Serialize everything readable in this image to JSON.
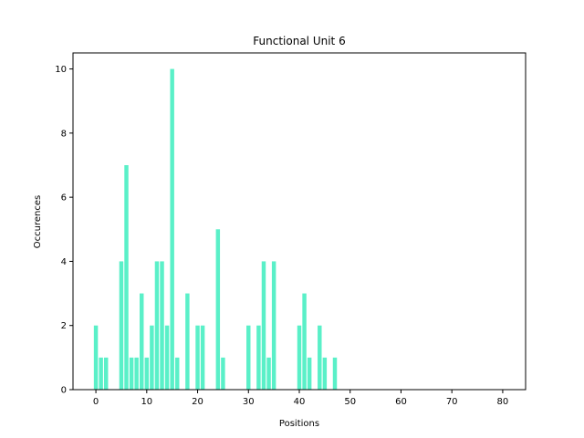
{
  "chart_data": {
    "type": "bar",
    "title": "Functional Unit 6",
    "xlabel": "Positions",
    "ylabel": "Occurences",
    "xlim": [
      -4.5,
      84.5
    ],
    "ylim": [
      0,
      10.5
    ],
    "xticks": [
      0,
      10,
      20,
      30,
      40,
      50,
      60,
      70,
      80
    ],
    "yticks": [
      0,
      2,
      4,
      6,
      8,
      10
    ],
    "grid": false,
    "bar_color": "#5af0c8",
    "x": [
      0,
      1,
      2,
      3,
      4,
      5,
      6,
      7,
      8,
      9,
      10,
      11,
      12,
      13,
      14,
      15,
      16,
      17,
      18,
      19,
      20,
      21,
      22,
      23,
      24,
      25,
      26,
      27,
      28,
      29,
      30,
      31,
      32,
      33,
      34,
      35,
      36,
      37,
      38,
      39,
      40,
      41,
      42,
      43,
      44,
      45,
      46,
      47,
      48,
      49,
      50,
      51,
      52,
      53,
      54,
      55,
      56,
      57,
      58,
      59,
      60,
      61,
      62,
      63,
      64,
      65,
      66,
      67,
      68,
      69,
      70,
      71,
      72,
      73,
      74,
      75,
      76,
      77,
      78,
      79,
      80
    ],
    "values": [
      2,
      1,
      1,
      0,
      0,
      4,
      7,
      1,
      1,
      3,
      1,
      2,
      4,
      4,
      2,
      10,
      1,
      0,
      3,
      0,
      2,
      2,
      0,
      0,
      5,
      1,
      0,
      0,
      0,
      0,
      2,
      0,
      2,
      4,
      1,
      4,
      0,
      0,
      0,
      0,
      2,
      3,
      1,
      0,
      2,
      1,
      0,
      1,
      0,
      0,
      0,
      0,
      0,
      0,
      0,
      0,
      0,
      0,
      0,
      0,
      0,
      0,
      0,
      0,
      0,
      0,
      0,
      0,
      0,
      0,
      0,
      0,
      0,
      0,
      0,
      0,
      0,
      0,
      0,
      0,
      0
    ]
  }
}
